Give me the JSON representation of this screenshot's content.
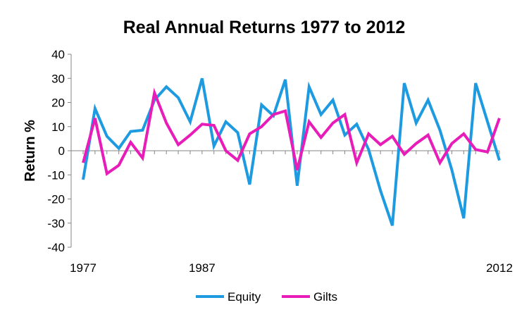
{
  "chart_data": {
    "type": "line",
    "title": "Real Annual Returns 1977 to 2012",
    "xlabel": "",
    "ylabel": "Return %",
    "ylim": [
      -40,
      40
    ],
    "yticks": [
      40,
      30,
      20,
      10,
      0,
      -10,
      -20,
      -30,
      -40
    ],
    "xticks_shown": [
      "1977",
      "1987",
      "2012"
    ],
    "x": [
      1977,
      1978,
      1979,
      1980,
      1981,
      1982,
      1983,
      1984,
      1985,
      1986,
      1987,
      1988,
      1989,
      1990,
      1991,
      1992,
      1993,
      1994,
      1995,
      1996,
      1997,
      1998,
      1999,
      2000,
      2001,
      2002,
      2003,
      2004,
      2005,
      2006,
      2007,
      2008,
      2009,
      2010,
      2011,
      2012
    ],
    "grid": false,
    "legend_position": "bottom",
    "series": [
      {
        "name": "Equity",
        "color": "#1e9be0",
        "values": [
          -12,
          17.5,
          6,
          1,
          8,
          8.5,
          21,
          26.5,
          22,
          12,
          30,
          2,
          12,
          7.5,
          -14,
          19,
          14.5,
          29.5,
          -14.5,
          26.5,
          15,
          21,
          6.5,
          11,
          0.5,
          -16.5,
          -31,
          28,
          11.5,
          21,
          8.5,
          -8,
          -28,
          28,
          12,
          -4
        ]
      },
      {
        "name": "Gilts",
        "color": "#e81cb8",
        "values": [
          -5,
          13.5,
          -9.5,
          -6,
          3.5,
          -3,
          24,
          11.5,
          2.5,
          6.5,
          11,
          10.5,
          0,
          -4,
          7,
          10,
          15,
          16.5,
          -8,
          12,
          5.5,
          11.5,
          15,
          -5,
          7,
          2.5,
          6,
          -1.5,
          3,
          6.5,
          -5,
          3,
          7,
          0.5,
          -0.5,
          13.5
        ]
      }
    ]
  }
}
